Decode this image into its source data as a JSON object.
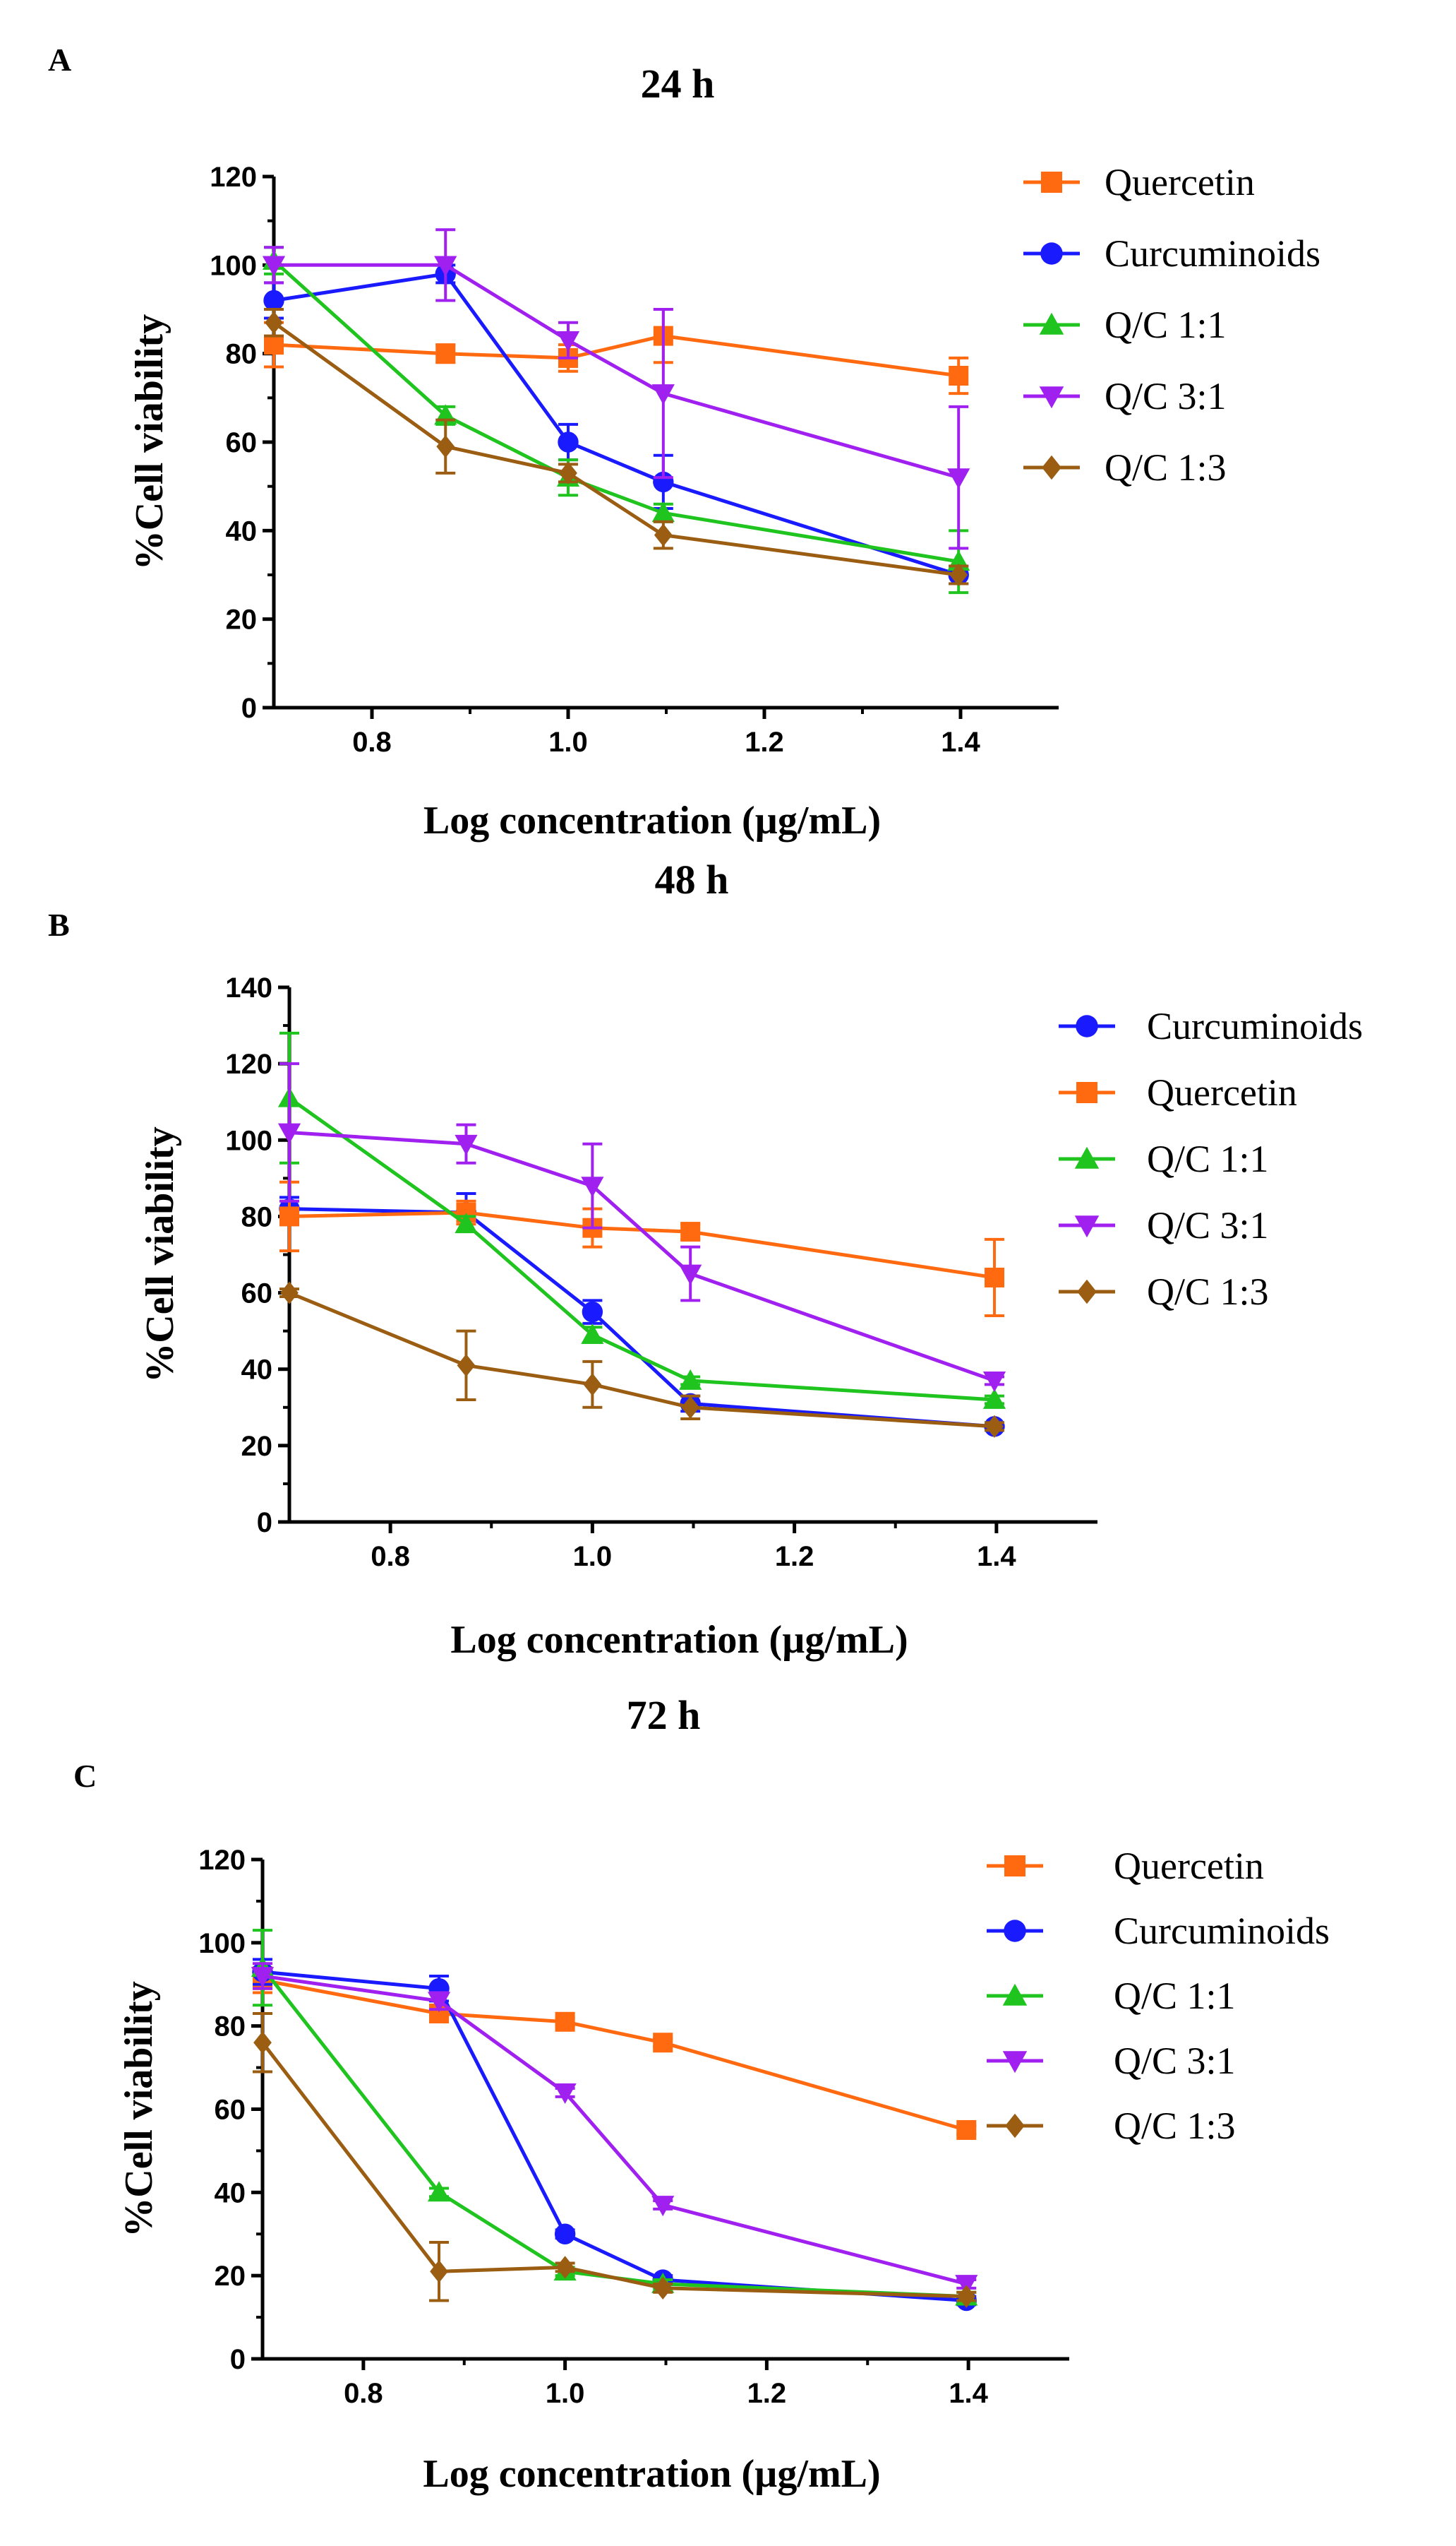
{
  "colors": {
    "Quercetin": "#ff6a10",
    "Curcuminoids": "#1a1aff",
    "Q/C 1:1": "#1fc41f",
    "Q/C 3:1": "#a020f0",
    "Q/C 1:3": "#9a5d12"
  },
  "markers": {
    "Quercetin": "square",
    "Curcuminoids": "circle",
    "Q/C 1:1": "triangle-up",
    "Q/C 3:1": "triangle-down",
    "Q/C 1:3": "diamond"
  },
  "chart_data": [
    {
      "type": "line",
      "panel": "A",
      "title": "24 h",
      "xlabel": "Log concentration (µg/mL)",
      "ylabel": "%Cell viability",
      "xlim": [
        0.7,
        1.5
      ],
      "ylim": [
        0,
        120
      ],
      "xticks": [
        "0.8",
        "1.0",
        "1.2",
        "1.4"
      ],
      "yticks": [
        "0",
        "20",
        "40",
        "60",
        "80",
        "100",
        "120"
      ],
      "legend_position": "right",
      "x": [
        0.7,
        0.875,
        1.0,
        1.097,
        1.398
      ],
      "series": [
        {
          "name": "Quercetin",
          "values": [
            82,
            80,
            79,
            84,
            75
          ],
          "errors": [
            5,
            2,
            3,
            6,
            4
          ]
        },
        {
          "name": "Curcuminoids",
          "values": [
            92,
            98,
            60,
            51,
            30
          ],
          "errors": [
            4,
            2,
            4,
            6,
            2
          ]
        },
        {
          "name": "Q/C 1:1",
          "values": [
            101,
            66,
            52,
            44,
            33
          ],
          "errors": [
            3,
            2,
            4,
            2,
            7
          ]
        },
        {
          "name": "Q/C 3:1",
          "values": [
            100,
            100,
            83,
            71,
            52
          ],
          "errors": [
            4,
            8,
            4,
            19,
            16
          ]
        },
        {
          "name": "Q/C 1:3",
          "values": [
            87,
            59,
            53,
            39,
            30
          ],
          "errors": [
            3,
            6,
            2,
            3,
            2
          ]
        }
      ]
    },
    {
      "type": "line",
      "panel": "B",
      "title": "48 h",
      "xlabel": "Log concentration (µg/mL)",
      "ylabel": "%Cell viability",
      "xlim": [
        0.7,
        1.5
      ],
      "ylim": [
        0,
        140
      ],
      "xticks": [
        "0.8",
        "1.0",
        "1.2",
        "1.4"
      ],
      "yticks": [
        "0",
        "20",
        "40",
        "60",
        "80",
        "100",
        "120",
        "140"
      ],
      "legend_position": "right",
      "x": [
        0.7,
        0.875,
        1.0,
        1.097,
        1.398
      ],
      "series": [
        {
          "name": "Curcuminoids",
          "values": [
            82,
            81,
            55,
            31,
            25
          ],
          "errors": [
            3,
            5,
            3,
            2,
            1
          ]
        },
        {
          "name": "Quercetin",
          "values": [
            80,
            81,
            77,
            76,
            64
          ],
          "errors": [
            9,
            3,
            5,
            2,
            10
          ]
        },
        {
          "name": "Q/C 1:1",
          "values": [
            111,
            78,
            49,
            37,
            32
          ],
          "errors": [
            17,
            2,
            2,
            1,
            1
          ]
        },
        {
          "name": "Q/C 3:1",
          "values": [
            102,
            99,
            88,
            65,
            37
          ],
          "errors": [
            18,
            5,
            11,
            7,
            1
          ]
        },
        {
          "name": "Q/C 1:3",
          "values": [
            60,
            41,
            36,
            30,
            25
          ],
          "errors": [
            1,
            9,
            6,
            3,
            1
          ]
        }
      ]
    },
    {
      "type": "line",
      "panel": "C",
      "title": "72 h",
      "xlabel": "Log concentration (µg/mL)",
      "ylabel": "%Cell viability",
      "xlim": [
        0.7,
        1.5
      ],
      "ylim": [
        0,
        120
      ],
      "xticks": [
        "0.8",
        "1.0",
        "1.2",
        "1.4"
      ],
      "yticks": [
        "0",
        "20",
        "40",
        "60",
        "80",
        "100",
        "120"
      ],
      "legend_position": "right",
      "x": [
        0.7,
        0.875,
        1.0,
        1.097,
        1.398
      ],
      "series": [
        {
          "name": "Quercetin",
          "values": [
            91,
            83,
            81,
            76,
            55
          ],
          "errors": [
            3,
            2,
            1,
            1,
            1
          ]
        },
        {
          "name": "Curcuminoids",
          "values": [
            93,
            89,
            30,
            19,
            14
          ],
          "errors": [
            3,
            3,
            1,
            1,
            1
          ]
        },
        {
          "name": "Q/C 1:1",
          "values": [
            94,
            40,
            21,
            18,
            15
          ],
          "errors": [
            9,
            1,
            1,
            1,
            1
          ]
        },
        {
          "name": "Q/C 3:1",
          "values": [
            92,
            86,
            64,
            37,
            18
          ],
          "errors": [
            3,
            2,
            1,
            1,
            1
          ]
        },
        {
          "name": "Q/C 1:3",
          "values": [
            76,
            21,
            22,
            17,
            15
          ],
          "errors": [
            7,
            7,
            1,
            1,
            1
          ]
        }
      ]
    }
  ]
}
